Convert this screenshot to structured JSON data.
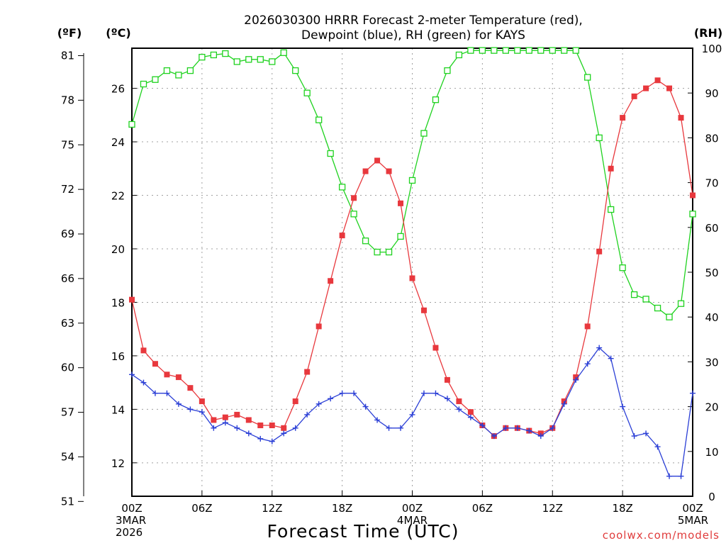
{
  "colors": {
    "temperature": "#e8383d",
    "dewpoint": "#2b3fd6",
    "rh": "#1fd21f",
    "credit": "#e03c3c",
    "grid": "#a0a0a0"
  },
  "chart_data": {
    "type": "line",
    "title_line1": "2026030300 HRRR Forecast 2-meter Temperature (red),",
    "title_line2": "Dewpoint (blue), RH (green) for KAYS",
    "xlabel": "Forecast Time (UTC)",
    "credit": "coolwx.com/models",
    "units": {
      "fahrenheit": "(ºF)",
      "celsius": "(ºC)",
      "rh": "(RH)"
    },
    "x_range_hours": [
      0,
      48
    ],
    "celsius_range": [
      10.75,
      27.5
    ],
    "rh_range": [
      0,
      100
    ],
    "x_ticks": [
      {
        "hour": 0,
        "lines": [
          "00Z",
          "3MAR",
          "2026"
        ]
      },
      {
        "hour": 6,
        "lines": [
          "06Z"
        ]
      },
      {
        "hour": 12,
        "lines": [
          "12Z"
        ]
      },
      {
        "hour": 18,
        "lines": [
          "18Z"
        ]
      },
      {
        "hour": 24,
        "lines": [
          "00Z",
          "4MAR"
        ]
      },
      {
        "hour": 30,
        "lines": [
          "06Z"
        ]
      },
      {
        "hour": 36,
        "lines": [
          "12Z"
        ]
      },
      {
        "hour": 42,
        "lines": [
          "18Z"
        ]
      },
      {
        "hour": 48,
        "lines": [
          "00Z",
          "5MAR"
        ]
      }
    ],
    "fahrenheit_ticks": [
      "51",
      "54",
      "57",
      "60",
      "63",
      "66",
      "69",
      "72",
      "75",
      "78",
      "81"
    ],
    "celsius_ticks": [
      "12",
      "14",
      "16",
      "18",
      "20",
      "22",
      "24",
      "26"
    ],
    "rh_ticks": [
      "0",
      "10",
      "20",
      "30",
      "40",
      "50",
      "60",
      "70",
      "80",
      "90",
      "100"
    ],
    "series": [
      {
        "name": "Temperature",
        "unit": "C",
        "marker": "filled-square",
        "values": [
          18.1,
          16.2,
          15.7,
          15.3,
          15.2,
          14.8,
          14.3,
          13.6,
          13.7,
          13.8,
          13.6,
          13.4,
          13.4,
          13.3,
          14.3,
          15.4,
          17.1,
          18.8,
          20.5,
          21.9,
          22.9,
          23.3,
          22.9,
          21.7,
          18.9,
          17.7,
          16.3,
          15.1,
          14.3,
          13.9,
          13.4,
          13.0,
          13.3,
          13.3,
          13.2,
          13.1,
          13.3,
          14.3,
          15.2,
          17.1,
          19.9,
          23.0,
          24.9,
          25.7,
          26.0,
          26.3,
          26.0,
          24.9,
          22.0
        ]
      },
      {
        "name": "Dewpoint",
        "unit": "C",
        "marker": "plus",
        "values": [
          15.3,
          15.0,
          14.6,
          14.6,
          14.2,
          14.0,
          13.9,
          13.3,
          13.5,
          13.3,
          13.1,
          12.9,
          12.8,
          13.1,
          13.3,
          13.8,
          14.2,
          14.4,
          14.6,
          14.6,
          14.1,
          13.6,
          13.3,
          13.3,
          13.8,
          14.6,
          14.6,
          14.4,
          14.0,
          13.7,
          13.4,
          13.0,
          13.3,
          13.3,
          13.2,
          13.0,
          13.3,
          14.2,
          15.1,
          15.7,
          16.3,
          15.9,
          14.1,
          13.0,
          13.1,
          12.6,
          11.5,
          11.5,
          14.6
        ]
      },
      {
        "name": "RH",
        "unit": "%",
        "marker": "open-square",
        "values": [
          83,
          92,
          93,
          95,
          94,
          95,
          98,
          98.5,
          98.8,
          97,
          97.5,
          97.5,
          97,
          99,
          95,
          90,
          84,
          76.5,
          69,
          63,
          57,
          54.5,
          54.5,
          58,
          70.5,
          81,
          88.5,
          95,
          98.5,
          99.5,
          99.5,
          99.5,
          99.5,
          99.5,
          99.5,
          99.5,
          99.5,
          99.5,
          99.5,
          93.5,
          80,
          64,
          51,
          45,
          44,
          42,
          40,
          43,
          63
        ]
      }
    ]
  }
}
